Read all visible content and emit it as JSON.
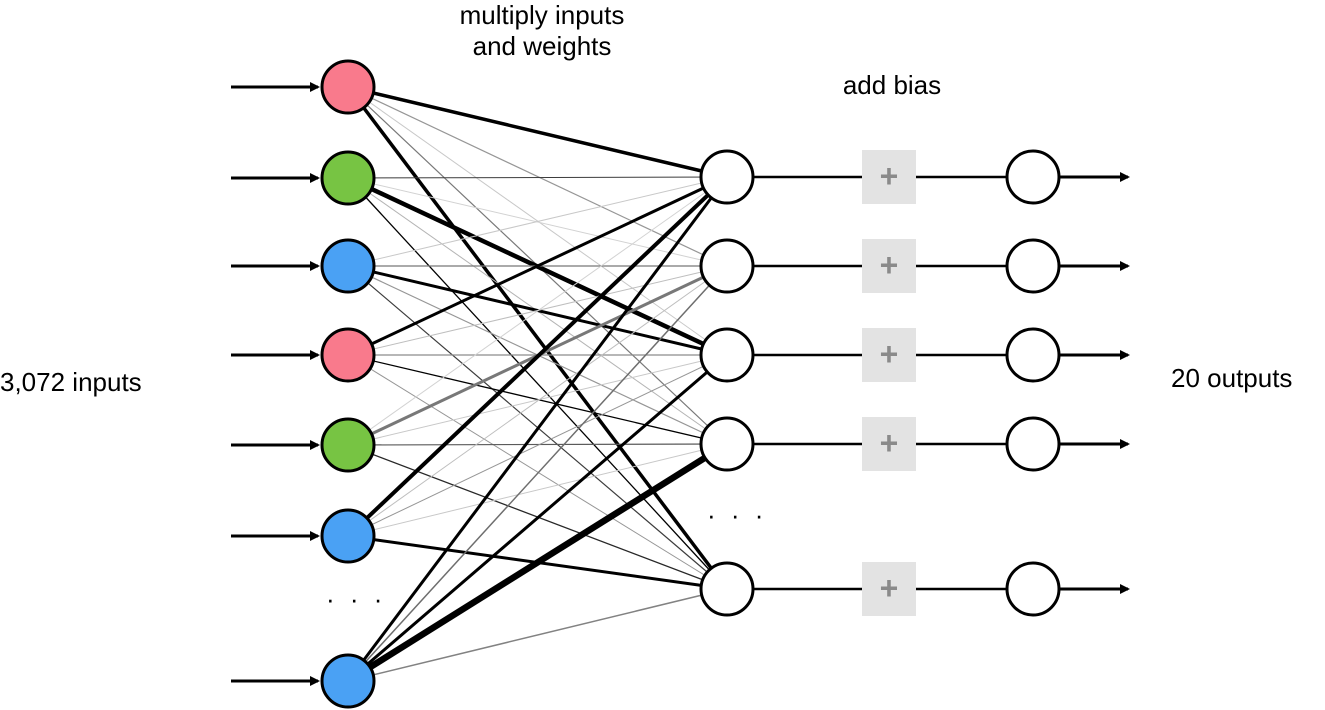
{
  "labels": {
    "multiply_line1": "multiply inputs",
    "multiply_line2": "and weights",
    "add_bias": "add bias",
    "inputs": "3,072 inputs",
    "outputs": "20 outputs",
    "ellipsis": "· · ·"
  },
  "bias_symbol": "+",
  "colors": {
    "input_red": "#f97a8c",
    "input_green": "#77c443",
    "input_blue": "#4aa1f4",
    "node_stroke": "#000000",
    "node_fill": "#ffffff",
    "bias_box": "#e3e3e3",
    "bias_plus": "#8a8a8a"
  },
  "input_nodes": [
    {
      "color": "red"
    },
    {
      "color": "green"
    },
    {
      "color": "blue"
    },
    {
      "color": "red"
    },
    {
      "color": "green"
    },
    {
      "color": "blue"
    },
    {
      "color": "blue"
    }
  ],
  "hidden_node_count": 5,
  "connections": [
    {
      "from": 0,
      "to": 0,
      "gray": 0,
      "width": 3.5
    },
    {
      "from": 0,
      "to": 1,
      "gray": 150,
      "width": 1.2
    },
    {
      "from": 0,
      "to": 2,
      "gray": 200,
      "width": 1
    },
    {
      "from": 0,
      "to": 3,
      "gray": 120,
      "width": 1.2
    },
    {
      "from": 0,
      "to": 4,
      "gray": 0,
      "width": 3.5
    },
    {
      "from": 1,
      "to": 0,
      "gray": 60,
      "width": 1
    },
    {
      "from": 1,
      "to": 1,
      "gray": 210,
      "width": 1
    },
    {
      "from": 1,
      "to": 2,
      "gray": 0,
      "width": 4.5
    },
    {
      "from": 1,
      "to": 3,
      "gray": 180,
      "width": 1
    },
    {
      "from": 1,
      "to": 4,
      "gray": 0,
      "width": 1.3
    },
    {
      "from": 2,
      "to": 0,
      "gray": 200,
      "width": 1
    },
    {
      "from": 2,
      "to": 1,
      "gray": 120,
      "width": 1.2
    },
    {
      "from": 2,
      "to": 2,
      "gray": 0,
      "width": 3
    },
    {
      "from": 2,
      "to": 3,
      "gray": 150,
      "width": 1.2
    },
    {
      "from": 2,
      "to": 4,
      "gray": 60,
      "width": 1.2
    },
    {
      "from": 3,
      "to": 0,
      "gray": 0,
      "width": 3
    },
    {
      "from": 3,
      "to": 1,
      "gray": 190,
      "width": 1
    },
    {
      "from": 3,
      "to": 2,
      "gray": 140,
      "width": 1.2
    },
    {
      "from": 3,
      "to": 3,
      "gray": 0,
      "width": 1.3
    },
    {
      "from": 3,
      "to": 4,
      "gray": 150,
      "width": 1
    },
    {
      "from": 4,
      "to": 0,
      "gray": 210,
      "width": 1
    },
    {
      "from": 4,
      "to": 1,
      "gray": 120,
      "width": 3
    },
    {
      "from": 4,
      "to": 2,
      "gray": 200,
      "width": 1
    },
    {
      "from": 4,
      "to": 3,
      "gray": 90,
      "width": 1.2
    },
    {
      "from": 4,
      "to": 4,
      "gray": 40,
      "width": 1.3
    },
    {
      "from": 5,
      "to": 0,
      "gray": 0,
      "width": 4
    },
    {
      "from": 5,
      "to": 1,
      "gray": 190,
      "width": 1
    },
    {
      "from": 5,
      "to": 2,
      "gray": 150,
      "width": 1
    },
    {
      "from": 5,
      "to": 3,
      "gray": 200,
      "width": 1
    },
    {
      "from": 5,
      "to": 4,
      "gray": 0,
      "width": 3
    },
    {
      "from": 6,
      "to": 0,
      "gray": 0,
      "width": 3
    },
    {
      "from": 6,
      "to": 1,
      "gray": 110,
      "width": 1.5
    },
    {
      "from": 6,
      "to": 2,
      "gray": 0,
      "width": 3
    },
    {
      "from": 6,
      "to": 3,
      "gray": 0,
      "width": 6.5
    },
    {
      "from": 6,
      "to": 4,
      "gray": 130,
      "width": 1.5
    }
  ]
}
